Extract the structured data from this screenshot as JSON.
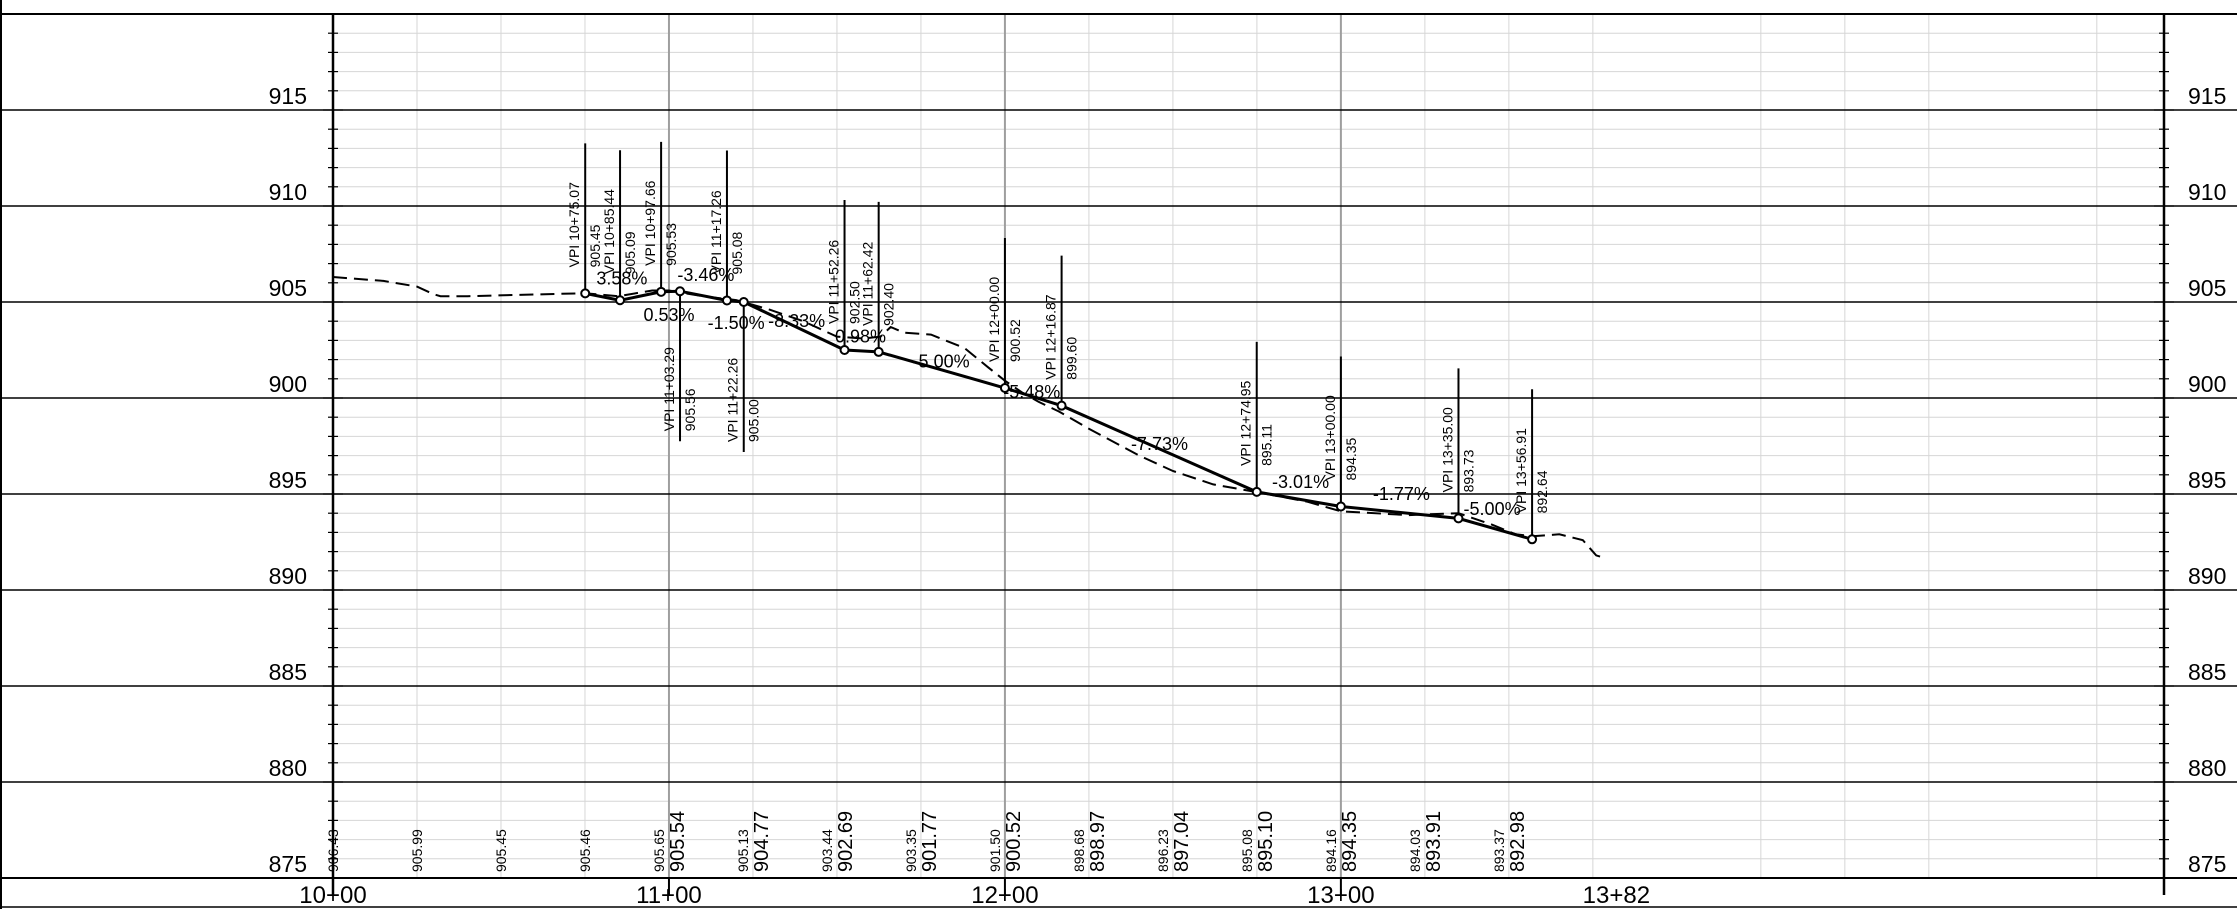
{
  "elevation_labels": [
    "915",
    "910",
    "905",
    "900",
    "895",
    "890",
    "885",
    "880",
    "875"
  ],
  "station_labels": [
    "10+00",
    "11+00",
    "12+00",
    "13+00",
    "13+82"
  ],
  "vpi_points": [
    {
      "label": "VPI 10+75.07",
      "elev": "905.45",
      "sta": 1075.07,
      "z": 905.45,
      "side": "above"
    },
    {
      "label": "VPI 10+85.44",
      "elev": "905.09",
      "sta": 1085.44,
      "z": 905.09,
      "side": "above"
    },
    {
      "label": "VPI 10+97.66",
      "elev": "905.53",
      "sta": 1097.66,
      "z": 905.53,
      "side": "above"
    },
    {
      "label": "VPI 11+03.29",
      "elev": "905.56",
      "sta": 1103.29,
      "z": 905.56,
      "side": "below"
    },
    {
      "label": "VPI 11+17.26",
      "elev": "905.08",
      "sta": 1117.26,
      "z": 905.08,
      "side": "above"
    },
    {
      "label": "VPI 11+22.26",
      "elev": "905.00",
      "sta": 1122.26,
      "z": 905.0,
      "side": "below"
    },
    {
      "label": "VPI 11+52.26",
      "elev": "902.50",
      "sta": 1152.26,
      "z": 902.5,
      "side": "above"
    },
    {
      "label": "VPI 11+62.42",
      "elev": "902.40",
      "sta": 1162.42,
      "z": 902.4,
      "side": "above"
    },
    {
      "label": "VPI 12+00.00",
      "elev": "900.52",
      "sta": 1200.0,
      "z": 900.52,
      "side": "above"
    },
    {
      "label": "VPI 12+16.87",
      "elev": "899.60",
      "sta": 1216.87,
      "z": 899.6,
      "side": "above"
    },
    {
      "label": "VPI 12+74.95",
      "elev": "895.11",
      "sta": 1274.95,
      "z": 895.11,
      "side": "above"
    },
    {
      "label": "VPI 13+00.00",
      "elev": "894.35",
      "sta": 1300.0,
      "z": 894.35,
      "side": "above"
    },
    {
      "label": "VPI 13+35.00",
      "elev": "893.73",
      "sta": 1335.0,
      "z": 893.73,
      "side": "above"
    },
    {
      "label": "VPI 13+56.91",
      "elev": "892.64",
      "sta": 1356.91,
      "z": 892.64,
      "side": "above"
    }
  ],
  "grades": [
    {
      "text": "3.58%",
      "sta": 1086,
      "z": 905.9
    },
    {
      "text": "0.53%",
      "sta": 1100,
      "z": 904.0
    },
    {
      "text": "-3.46%",
      "sta": 1111,
      "z": 906.1
    },
    {
      "text": "-1.50%",
      "sta": 1120,
      "z": 903.6
    },
    {
      "text": "-8.33%",
      "sta": 1138,
      "z": 903.7
    },
    {
      "text": "0.98%",
      "sta": 1157,
      "z": 902.9
    },
    {
      "text": "-5.00%",
      "sta": 1181,
      "z": 901.6
    },
    {
      "text": "-5.48%",
      "sta": 1208,
      "z": 900.0
    },
    {
      "text": "-7.73%",
      "sta": 1246,
      "z": 897.3
    },
    {
      "text": "-3.01%",
      "sta": 1288,
      "z": 895.3
    },
    {
      "text": "-1.77%",
      "sta": 1318,
      "z": 894.7
    },
    {
      "text": "-5.00%",
      "sta": 1345,
      "z": 893.9
    }
  ],
  "existing_ground": [
    [
      1000,
      906.3
    ],
    [
      1015,
      906.1
    ],
    [
      1025,
      905.8
    ],
    [
      1030,
      905.4
    ],
    [
      1032,
      905.3
    ],
    [
      1040,
      905.3
    ],
    [
      1075,
      905.46
    ],
    [
      1085,
      905.3
    ],
    [
      1095,
      905.6
    ],
    [
      1100,
      905.6
    ],
    [
      1110,
      905.3
    ],
    [
      1120,
      905.1
    ],
    [
      1130,
      904.6
    ],
    [
      1140,
      904.0
    ],
    [
      1150,
      903.2
    ],
    [
      1158,
      903.1
    ],
    [
      1163,
      903.2
    ],
    [
      1166,
      903.7
    ],
    [
      1170,
      903.4
    ],
    [
      1178,
      903.3
    ],
    [
      1188,
      902.6
    ],
    [
      1195,
      901.6
    ],
    [
      1200,
      900.9
    ],
    [
      1205,
      900.3
    ],
    [
      1210,
      899.8
    ],
    [
      1216,
      899.3
    ],
    [
      1225,
      898.4
    ],
    [
      1240,
      897.0
    ],
    [
      1250,
      896.2
    ],
    [
      1262,
      895.5
    ],
    [
      1275,
      895.1
    ],
    [
      1290,
      894.6
    ],
    [
      1300,
      894.1
    ],
    [
      1320,
      893.9
    ],
    [
      1335,
      894.0
    ],
    [
      1345,
      893.4
    ],
    [
      1352,
      892.9
    ],
    [
      1357,
      892.8
    ],
    [
      1365,
      892.9
    ],
    [
      1372,
      892.6
    ],
    [
      1376,
      891.8
    ],
    [
      1378,
      891.7
    ]
  ],
  "bottom_values": [
    {
      "text": "906.43",
      "sta": 1000,
      "major": false
    },
    {
      "text": "905.99",
      "sta": 1025,
      "major": false
    },
    {
      "text": "905.45",
      "sta": 1050,
      "major": false
    },
    {
      "text": "905.46",
      "sta": 1075,
      "major": false
    },
    {
      "text": "905.65",
      "sta": 1097,
      "major": false
    },
    {
      "text": "905.54",
      "sta": 1103,
      "major": true
    },
    {
      "text": "905.13",
      "sta": 1122,
      "major": false
    },
    {
      "text": "904.77",
      "sta": 1128,
      "major": true
    },
    {
      "text": "903.44",
      "sta": 1147,
      "major": false
    },
    {
      "text": "902.69",
      "sta": 1153,
      "major": true
    },
    {
      "text": "903.35",
      "sta": 1172,
      "major": false
    },
    {
      "text": "901.77",
      "sta": 1178,
      "major": true
    },
    {
      "text": "901.50",
      "sta": 1197,
      "major": false
    },
    {
      "text": "900.52",
      "sta": 1203,
      "major": true
    },
    {
      "text": "898.68",
      "sta": 1222,
      "major": false
    },
    {
      "text": "898.97",
      "sta": 1228,
      "major": true
    },
    {
      "text": "896.23",
      "sta": 1247,
      "major": false
    },
    {
      "text": "897.04",
      "sta": 1253,
      "major": true
    },
    {
      "text": "895.08",
      "sta": 1272,
      "major": false
    },
    {
      "text": "895.10",
      "sta": 1278,
      "major": true
    },
    {
      "text": "894.16",
      "sta": 1297,
      "major": false
    },
    {
      "text": "894.35",
      "sta": 1303,
      "major": true
    },
    {
      "text": "894.03",
      "sta": 1322,
      "major": false
    },
    {
      "text": "893.91",
      "sta": 1328,
      "major": true
    },
    {
      "text": "893.37",
      "sta": 1347,
      "major": false
    },
    {
      "text": "892.98",
      "sta": 1353,
      "major": true
    }
  ]
}
